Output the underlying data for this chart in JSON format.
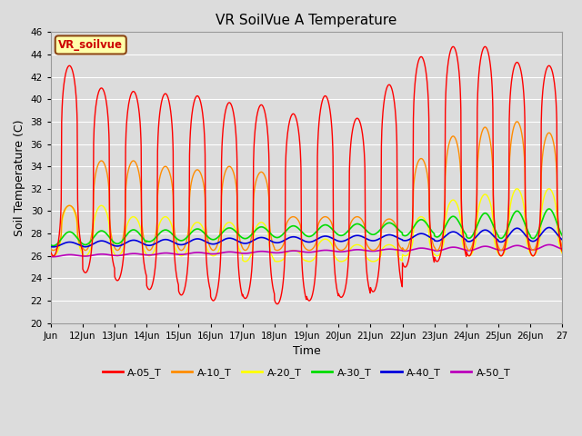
{
  "title": "VR SoilVue A Temperature",
  "ylabel": "Soil Temperature (C)",
  "xlabel": "Time",
  "annotation": "VR_soilvue",
  "ylim": [
    20,
    46
  ],
  "yticks": [
    20,
    22,
    24,
    26,
    28,
    30,
    32,
    34,
    36,
    38,
    40,
    42,
    44,
    46
  ],
  "xtick_labels": [
    "Jun",
    "12Jun",
    "13Jun",
    "14Jun",
    "15Jun",
    "16Jun",
    "17Jun",
    "18Jun",
    "19Jun",
    "20Jun",
    "21Jun",
    "22Jun",
    "23Jun",
    "24Jun",
    "25Jun",
    "26Jun",
    "27"
  ],
  "series_colors": {
    "A-05_T": "#ff0000",
    "A-10_T": "#ff8c00",
    "A-20_T": "#ffff00",
    "A-30_T": "#00dd00",
    "A-40_T": "#0000dd",
    "A-50_T": "#bb00bb"
  },
  "background_color": "#dcdcdc",
  "plot_bg_color": "#dcdcdc",
  "grid_color": "#ffffff",
  "annotation_bg": "#ffffaa",
  "annotation_border": "#8b4513",
  "annotation_text_color": "#cc0000",
  "figsize": [
    6.4,
    4.8
  ],
  "dpi": 100,
  "peaks_A05": [
    43.0,
    41.0,
    40.7,
    40.5,
    40.3,
    39.7,
    39.5,
    38.7,
    40.3,
    38.3,
    41.3,
    43.8,
    44.7,
    44.7,
    43.3,
    43.0
  ],
  "troughs_A05": [
    26.0,
    24.5,
    23.8,
    23.0,
    22.5,
    22.0,
    22.2,
    21.7,
    22.0,
    22.3,
    22.8,
    25.0,
    25.5,
    26.0,
    26.0,
    26.0
  ],
  "peaks_A10": [
    30.5,
    34.5,
    34.5,
    34.0,
    33.7,
    34.0,
    33.5,
    29.5,
    29.5,
    29.5,
    29.3,
    34.7,
    36.7,
    37.5,
    38.0,
    37.0
  ],
  "troughs_A10": [
    26.5,
    26.5,
    26.5,
    26.5,
    26.5,
    26.5,
    26.5,
    26.5,
    26.5,
    26.5,
    26.5,
    26.5,
    26.5,
    26.5,
    26.5,
    26.5
  ],
  "peaks_A20": [
    30.5,
    30.5,
    29.5,
    29.5,
    29.0,
    29.0,
    29.0,
    26.5,
    27.5,
    27.0,
    27.0,
    29.5,
    31.0,
    31.5,
    32.0,
    32.0
  ],
  "troughs_A20": [
    26.0,
    26.0,
    26.0,
    26.0,
    26.0,
    26.0,
    25.5,
    25.5,
    25.5,
    25.5,
    25.5,
    26.0,
    26.0,
    26.0,
    26.0,
    26.0
  ],
  "base_A30": 27.5,
  "base_A40": 27.0,
  "base_A50": 26.0,
  "trend_A30": 0.09,
  "trend_A40": 0.06,
  "trend_A50": 0.05
}
